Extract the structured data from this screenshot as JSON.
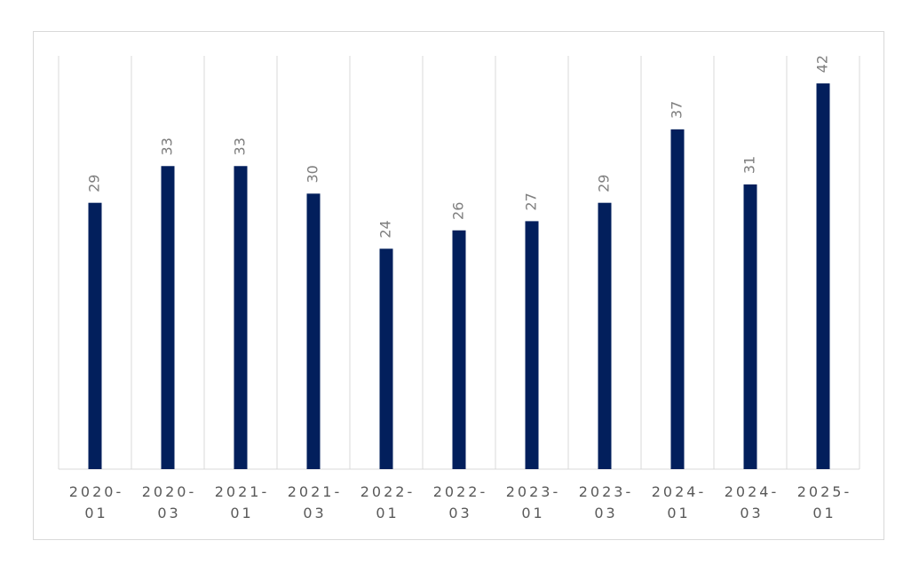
{
  "chart_data": {
    "type": "bar",
    "categories": [
      "2020-01",
      "2020-03",
      "2021-01",
      "2021-03",
      "2022-01",
      "2022-03",
      "2023-01",
      "2023-03",
      "2024-01",
      "2024-03",
      "2025-01"
    ],
    "values": [
      29,
      33,
      33,
      30,
      24,
      26,
      27,
      29,
      37,
      31,
      42
    ],
    "color": "#021f5c",
    "ylim": [
      0,
      45
    ]
  }
}
